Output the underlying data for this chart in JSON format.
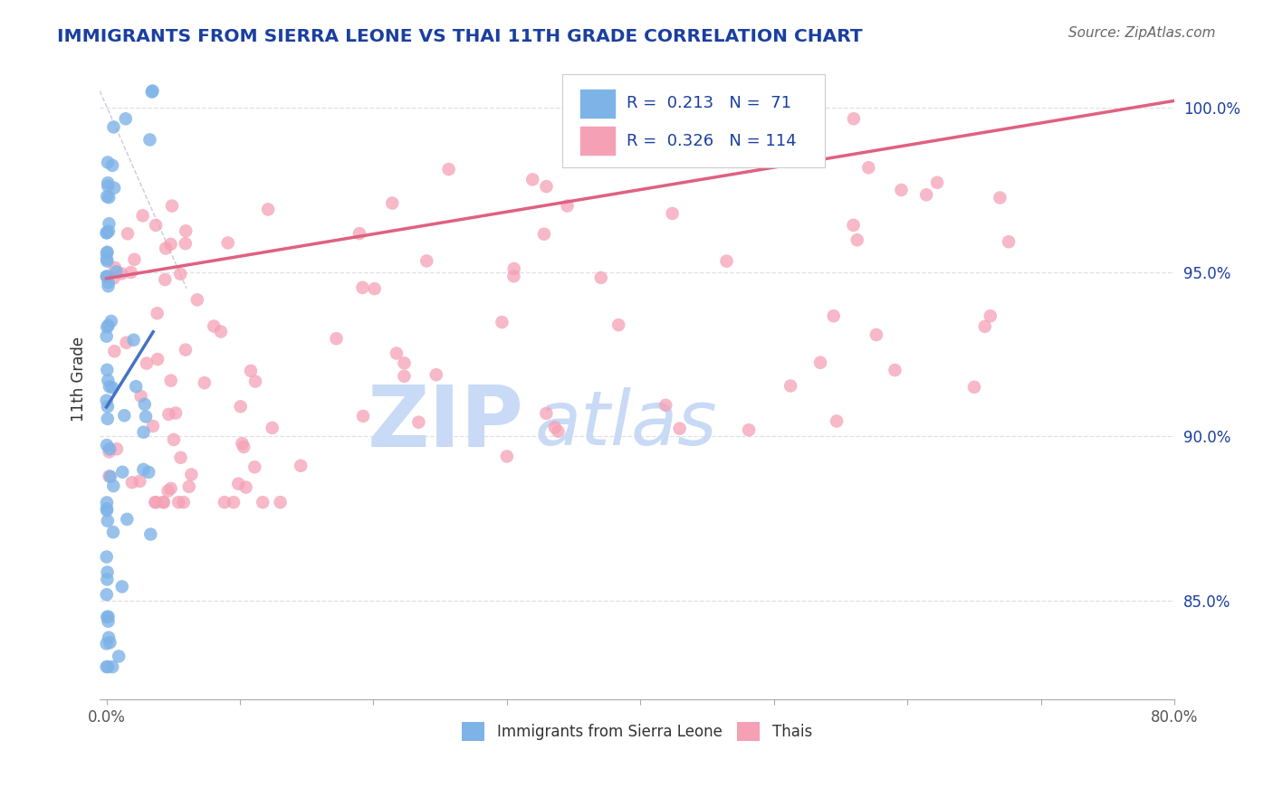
{
  "title": "IMMIGRANTS FROM SIERRA LEONE VS THAI 11TH GRADE CORRELATION CHART",
  "source_text": "Source: ZipAtlas.com",
  "ylabel": "11th Grade",
  "xlim": [
    -0.5,
    80.0
  ],
  "ylim": [
    82.0,
    101.5
  ],
  "ytick_positions": [
    85.0,
    90.0,
    95.0,
    100.0
  ],
  "yticklabels": [
    "85.0%",
    "90.0%",
    "95.0%",
    "100.0%"
  ],
  "sierra_leone_color": "#7eb3e8",
  "thai_color": "#f5a0b5",
  "sierra_leone_R": 0.213,
  "sierra_leone_N": 71,
  "thai_R": 0.326,
  "thai_N": 114,
  "sierra_leone_trend_color": "#4472c4",
  "thai_trend_color": "#e06080",
  "legend_text_color": "#1a3fa0",
  "title_color": "#1a3fa0",
  "watermark_zip": "ZIP",
  "watermark_atlas": "atlas",
  "watermark_color": "#c8daf5",
  "background_color": "#ffffff",
  "ref_line_color": "#b0b8d0",
  "grid_color": "#e0e0e8",
  "bottom_label_color": "#1a3fa0"
}
